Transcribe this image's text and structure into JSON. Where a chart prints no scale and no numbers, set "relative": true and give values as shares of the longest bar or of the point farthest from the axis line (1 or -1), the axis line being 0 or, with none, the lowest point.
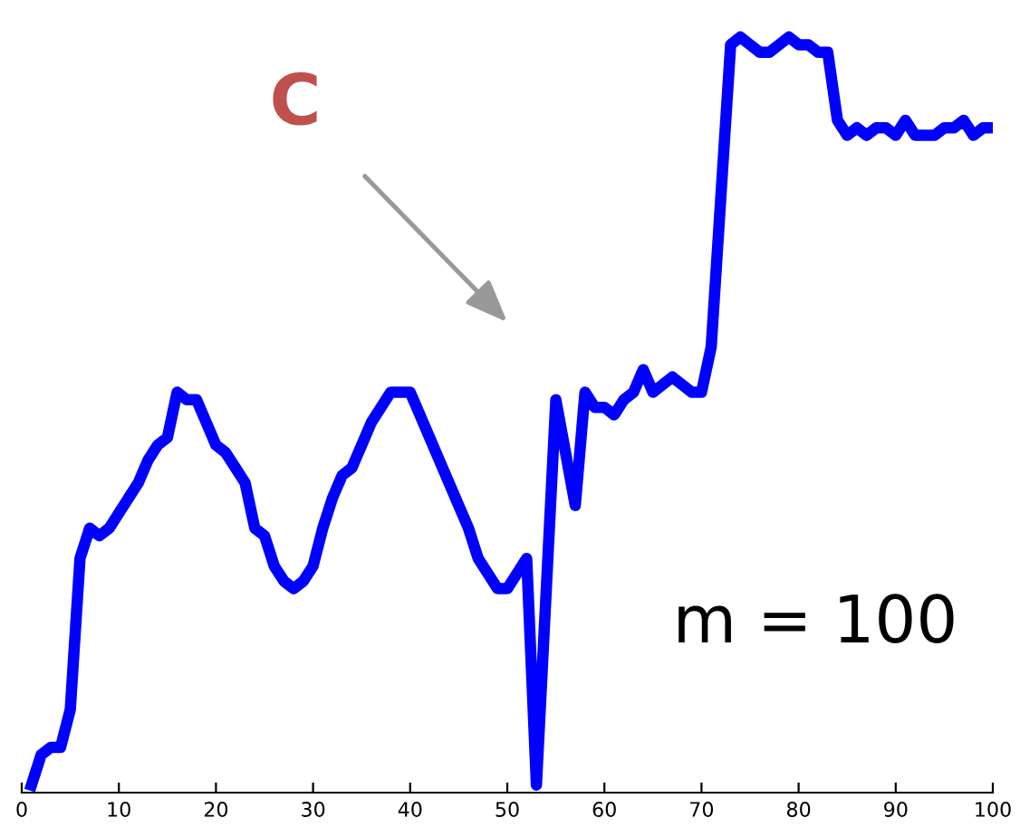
{
  "chart_data": {
    "type": "line",
    "relative": true,
    "xlim": [
      0,
      100
    ],
    "xticks": [
      0,
      10,
      20,
      30,
      40,
      50,
      60,
      70,
      80,
      90,
      100
    ],
    "grid": false,
    "legend": false,
    "marker": "none",
    "line_style": "solid",
    "series": [
      {
        "color": "#0000ff",
        "x": [
          1,
          2,
          3,
          4,
          5,
          6,
          7,
          8,
          9,
          10,
          11,
          12,
          13,
          14,
          15,
          16,
          17,
          18,
          19,
          20,
          21,
          22,
          23,
          24,
          25,
          26,
          27,
          28,
          29,
          30,
          31,
          32,
          33,
          34,
          35,
          36,
          37,
          38,
          39,
          40,
          41,
          42,
          43,
          44,
          45,
          46,
          47,
          48,
          49,
          50,
          51,
          52,
          53,
          55,
          57,
          58,
          59,
          60,
          61,
          62,
          63,
          64,
          65,
          66,
          67,
          68,
          69,
          70,
          71,
          72,
          73,
          74,
          75,
          76,
          77,
          78,
          79,
          80,
          81,
          82,
          83,
          84,
          85,
          86,
          87,
          88,
          89,
          90,
          91,
          92,
          93,
          94,
          95,
          96,
          97,
          98,
          99,
          100
        ],
        "values": [
          0.01,
          0.05,
          0.06,
          0.06,
          0.11,
          0.31,
          0.35,
          0.34,
          0.35,
          0.37,
          0.39,
          0.41,
          0.44,
          0.46,
          0.47,
          0.53,
          0.52,
          0.52,
          0.49,
          0.46,
          0.45,
          0.43,
          0.41,
          0.35,
          0.34,
          0.3,
          0.28,
          0.27,
          0.28,
          0.3,
          0.35,
          0.39,
          0.42,
          0.43,
          0.46,
          0.49,
          0.51,
          0.53,
          0.53,
          0.53,
          0.5,
          0.47,
          0.44,
          0.41,
          0.38,
          0.35,
          0.31,
          0.29,
          0.27,
          0.27,
          0.29,
          0.31,
          0.01,
          0.52,
          0.38,
          0.53,
          0.51,
          0.51,
          0.5,
          0.52,
          0.53,
          0.56,
          0.53,
          0.54,
          0.55,
          0.54,
          0.53,
          0.53,
          0.59,
          0.79,
          0.99,
          1.0,
          0.99,
          0.98,
          0.98,
          0.99,
          1.0,
          0.99,
          0.99,
          0.98,
          0.98,
          0.89,
          0.87,
          0.88,
          0.87,
          0.88,
          0.88,
          0.87,
          0.89,
          0.87,
          0.87,
          0.87,
          0.88,
          0.88,
          0.89,
          0.87,
          0.88,
          0.88
        ]
      }
    ],
    "annotations": [
      "C",
      "m = 100"
    ]
  }
}
